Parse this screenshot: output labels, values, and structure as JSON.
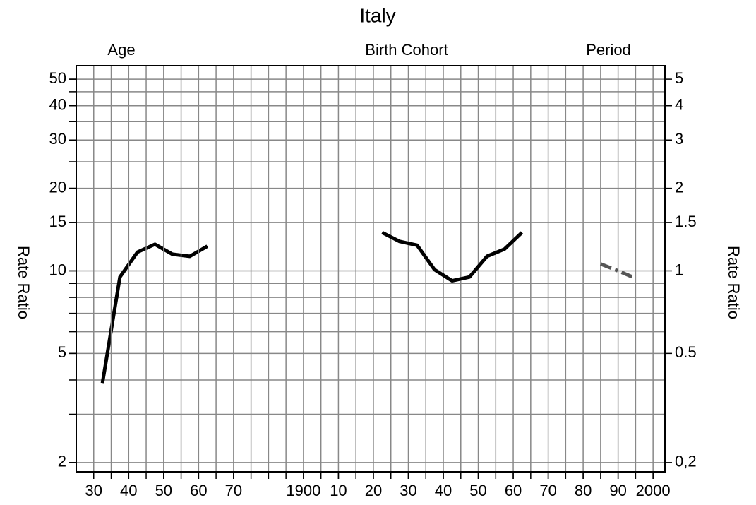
{
  "chart_data": [
    {
      "type": "line",
      "title": "Italy",
      "ylabel": "Rate Ratio",
      "log_y": true,
      "grid": true,
      "xlim": [
        25,
        193.4
      ],
      "xticks": [
        30,
        40,
        50,
        60,
        70
      ],
      "ylim": [
        1.85,
        56
      ],
      "yticks": [
        2,
        5,
        10,
        15,
        20,
        30,
        40,
        50
      ],
      "ygrid": [
        2,
        3,
        4,
        5,
        6,
        7,
        8,
        9,
        10,
        15,
        20,
        25,
        30,
        35,
        40,
        45,
        50
      ],
      "series": [
        {
          "name": "Age",
          "color": "#000000",
          "x": [
            32.5,
            37.5,
            42.5,
            47.5,
            52.5,
            57.5,
            62.5
          ],
          "values": [
            3.9,
            9.5,
            11.7,
            12.5,
            11.5,
            11.3,
            12.3
          ]
        }
      ]
    },
    {
      "type": "line",
      "y2label": "Rate Ratio",
      "log_y": true,
      "grid": true,
      "xlim": [
        1835,
        2003.4
      ],
      "xticks": [
        1900,
        {
          "value": 1910,
          "label": "10"
        },
        {
          "value": 1920,
          "label": "20"
        },
        {
          "value": 1930,
          "label": "30"
        },
        {
          "value": 1940,
          "label": "40"
        },
        {
          "value": 1950,
          "label": "50"
        },
        {
          "value": 1960,
          "label": "60"
        },
        {
          "value": 1970,
          "label": "70"
        },
        {
          "value": 1980,
          "label": "80"
        },
        {
          "value": 1990,
          "label": "90"
        },
        2000
      ],
      "xgrid": [
        1840,
        1845,
        1850,
        1855,
        1860,
        1865,
        1870,
        1875,
        1880,
        1885,
        1890,
        1895,
        1900,
        1905,
        1910,
        1915,
        1920,
        1925,
        1930,
        1935,
        1940,
        1945,
        1950,
        1955,
        1960,
        1965,
        1970,
        1975,
        1980,
        1985,
        1990,
        1995,
        2000
      ],
      "y2lim": [
        0.185,
        5.6
      ],
      "y2ticks": [
        {
          "value": 0.2,
          "label": "0,2"
        },
        0.5,
        1,
        1.5,
        2,
        3,
        4,
        5
      ],
      "series": [
        {
          "name": "Birth Cohort",
          "color": "#000000",
          "axis": "y2",
          "x": [
            1922.5,
            1927.5,
            1932.5,
            1937.5,
            1942.5,
            1947.5,
            1952.5,
            1957.5,
            1962.5
          ],
          "values": [
            1.38,
            1.28,
            1.24,
            1.01,
            0.92,
            0.95,
            1.13,
            1.2,
            1.38
          ]
        },
        {
          "name": "Period",
          "color": "#555555",
          "axis": "y2",
          "x": [
            1985,
            1990,
            1995
          ],
          "values": [
            1.06,
            1.0,
            0.94
          ]
        }
      ]
    }
  ]
}
